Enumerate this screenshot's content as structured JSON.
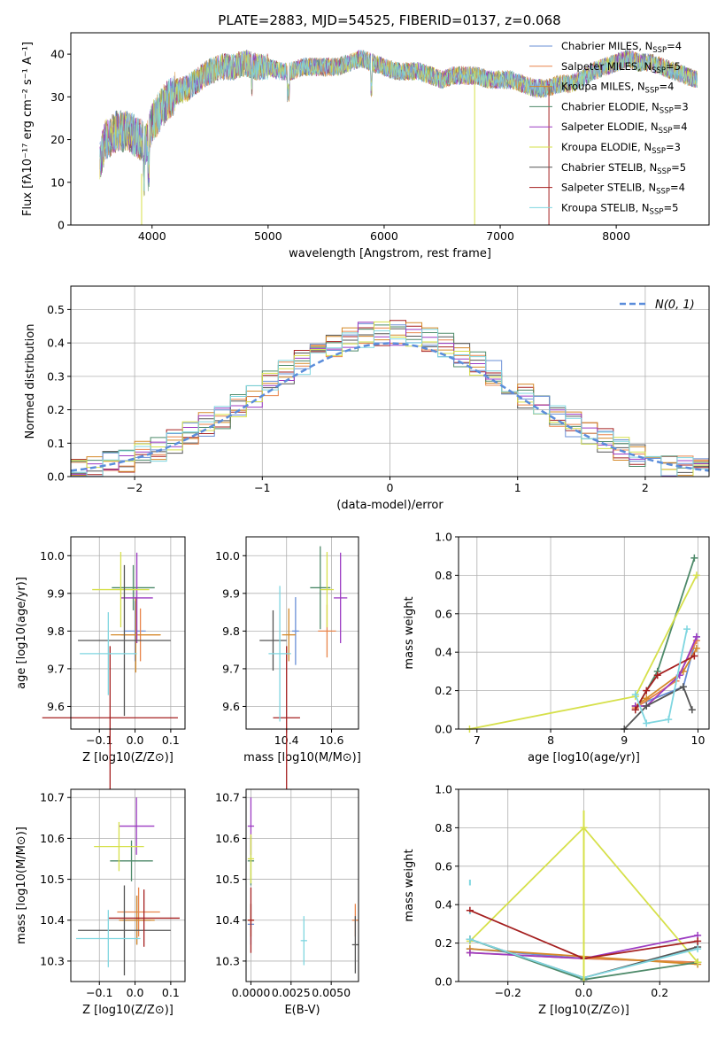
{
  "title": "PLATE=2883, MJD=54525, FIBERID=0137, z=0.068",
  "colors": [
    "#6a8fd6",
    "#e8844a",
    "#d58a2a",
    "#4e8a6a",
    "#9c3bc2",
    "#d6e04a",
    "#555555",
    "#a52020",
    "#7fd6e0"
  ],
  "chart_data": [
    {
      "id": "spectrum",
      "type": "line",
      "xlabel": "wavelength [Angstrom, rest frame]",
      "ylabel": "Flux [fλ10⁻¹⁷ erg cm⁻² s⁻¹ A⁻¹]",
      "xlim": [
        3300,
        8800
      ],
      "ylim": [
        0,
        45
      ],
      "xticks": [
        "4000",
        "5000",
        "6000",
        "7000",
        "8000"
      ],
      "yticks": [
        "0",
        "10",
        "20",
        "30",
        "40"
      ],
      "x": [
        3550,
        3600,
        3700,
        3800,
        3900,
        3950,
        4000,
        4100,
        4200,
        4300,
        4400,
        4500,
        4600,
        4700,
        4800,
        4900,
        5000,
        5100,
        5200,
        5300,
        5400,
        5500,
        5600,
        5700,
        5800,
        5900,
        6000,
        6100,
        6200,
        6300,
        6400,
        6500,
        6600,
        6700,
        6800,
        6900,
        7000,
        7100,
        7200,
        7300,
        7400,
        7500,
        7600,
        7700,
        7800,
        7900,
        8000,
        8100,
        8200,
        8300,
        8400,
        8500,
        8600,
        8700
      ],
      "y": [
        15,
        20,
        22,
        22,
        20,
        19,
        24,
        28,
        31,
        32,
        34,
        36,
        37,
        37,
        38,
        37,
        37,
        36,
        36,
        37,
        37,
        37,
        37,
        38,
        39,
        38,
        37,
        36,
        36,
        36,
        35,
        34,
        35,
        35,
        35,
        34,
        34,
        34,
        33,
        32,
        32,
        33,
        33,
        34,
        36,
        37,
        38,
        39,
        38,
        38,
        37,
        36,
        35,
        34
      ],
      "legend": [
        "Chabrier MILES, N_SSP=4",
        "Salpeter MILES, N_SSP=5",
        "Kroupa MILES, N_SSP=4",
        "Chabrier ELODIE, N_SSP=3",
        "Salpeter ELODIE, N_SSP=4",
        "Kroupa ELODIE, N_SSP=3",
        "Chabrier STELIB, N_SSP=5",
        "Salpeter STELIB, N_SSP=4",
        "Kroupa STELIB, N_SSP=5"
      ]
    },
    {
      "id": "residuals",
      "type": "bar",
      "xlabel": "(data-model)/error",
      "ylabel": "Normed distribution",
      "xlim": [
        -2.5,
        2.5
      ],
      "ylim": [
        0,
        0.57
      ],
      "xticks": [
        "−2",
        "−1",
        "0",
        "1",
        "2"
      ],
      "yticks": [
        "0.0",
        "0.1",
        "0.2",
        "0.3",
        "0.4",
        "0.5"
      ],
      "legend": "N(0, 1)"
    },
    {
      "id": "age_vs_Z",
      "type": "scatter",
      "xlabel": "Z [log10(Z/Z⊙)]",
      "ylabel": "age [log10(age/yr)]",
      "xlim": [
        -0.18,
        0.14
      ],
      "ylim": [
        9.54,
        10.05
      ],
      "xticks": [
        "−0.1",
        "0.0",
        "0.1"
      ],
      "yticks": [
        "9.6",
        "9.7",
        "9.8",
        "9.9",
        "10.0"
      ]
    },
    {
      "id": "age_vs_mass",
      "type": "scatter",
      "xlabel": "mass [log10(M/M⊙)]",
      "ylabel": "",
      "xlim": [
        10.22,
        10.72
      ],
      "ylim": [
        9.54,
        10.05
      ],
      "xticks": [
        "10.4",
        "10.6"
      ],
      "yticks": [
        "9.6",
        "9.7",
        "9.8",
        "9.9",
        "10.0"
      ]
    },
    {
      "id": "weight_vs_age",
      "type": "line",
      "xlabel": "age [log10(age/yr)]",
      "ylabel": "mass weight",
      "xlim": [
        6.75,
        10.15
      ],
      "ylim": [
        0,
        1
      ],
      "xticks": [
        "7",
        "8",
        "9",
        "10"
      ],
      "yticks": [
        "0.0",
        "0.2",
        "0.4",
        "0.6",
        "0.8",
        "1.0"
      ]
    },
    {
      "id": "mass_vs_Z",
      "type": "scatter",
      "xlabel": "Z [log10(Z/Z⊙)]",
      "ylabel": "mass [log10(M/M⊙)]",
      "xlim": [
        -0.18,
        0.14
      ],
      "ylim": [
        10.25,
        10.72
      ],
      "xticks": [
        "−0.1",
        "0.0",
        "0.1"
      ],
      "yticks": [
        "10.3",
        "10.4",
        "10.5",
        "10.6",
        "10.7"
      ]
    },
    {
      "id": "mass_vs_EBV",
      "type": "scatter",
      "xlabel": "E(B-V)",
      "ylabel": "",
      "xlim": [
        -0.0003,
        0.0067
      ],
      "ylim": [
        10.25,
        10.72
      ],
      "xticks": [
        "0.0000",
        "0.0025",
        "0.0050"
      ],
      "yticks": [
        "10.3",
        "10.4",
        "10.5",
        "10.6",
        "10.7"
      ]
    },
    {
      "id": "weight_vs_Z",
      "type": "line",
      "xlabel": "Z [log10(Z/Z⊙)]",
      "ylabel": "mass weight",
      "xlim": [
        -0.33,
        0.33
      ],
      "ylim": [
        0,
        1
      ],
      "xticks": [
        "−0.2",
        "0.0",
        "0.2"
      ],
      "yticks": [
        "0.0",
        "0.2",
        "0.4",
        "0.6",
        "0.8",
        "1.0"
      ]
    }
  ]
}
